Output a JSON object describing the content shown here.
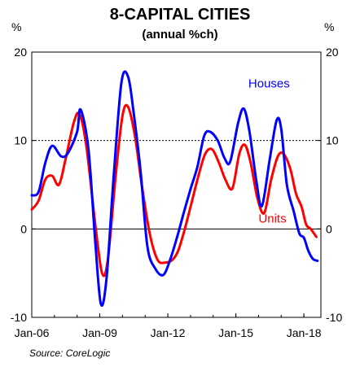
{
  "chart_data": {
    "type": "line",
    "title": "8-CAPITAL CITIES",
    "subtitle": "(annual %ch)",
    "y_unit_left": "%",
    "y_unit_right": "%",
    "source": "Source: CoreLogic",
    "ylim": [
      -10,
      20
    ],
    "xlim": [
      2006.0,
      2018.75
    ],
    "y_ticks": [
      "20",
      "10",
      "0",
      "-10"
    ],
    "x_ticks": [
      {
        "label": "Jan-06",
        "x": 2006.0
      },
      {
        "label": "Jan-09",
        "x": 2009.0
      },
      {
        "label": "Jan-12",
        "x": 2012.0
      },
      {
        "label": "Jan-15",
        "x": 2015.0
      },
      {
        "label": "Jan-18",
        "x": 2018.0
      }
    ],
    "reference_lines": [
      {
        "y": 10,
        "style": "dotted"
      },
      {
        "y": 0,
        "style": "solid"
      }
    ],
    "series": [
      {
        "name": "Houses",
        "color": "#0000ff",
        "x": [
          2006.0,
          2006.3,
          2006.6,
          2006.9,
          2007.3,
          2007.6,
          2008.0,
          2008.15,
          2008.5,
          2008.8,
          2009.05,
          2009.3,
          2009.6,
          2009.95,
          2010.25,
          2010.5,
          2010.8,
          2011.1,
          2011.45,
          2011.8,
          2012.1,
          2012.4,
          2012.7,
          2013.0,
          2013.3,
          2013.6,
          2013.85,
          2014.2,
          2014.5,
          2014.75,
          2015.1,
          2015.35,
          2015.6,
          2015.9,
          2016.15,
          2016.5,
          2016.8,
          2017.0,
          2017.25,
          2017.55,
          2017.8,
          2018.0,
          2018.2,
          2018.4,
          2018.6
        ],
        "y": [
          3.8,
          4.2,
          7.5,
          9.4,
          8.2,
          8.6,
          11.0,
          13.5,
          9.0,
          -1.5,
          -8.5,
          -5.5,
          5.5,
          16.5,
          17.2,
          13.0,
          6.5,
          -2.0,
          -4.5,
          -5.2,
          -3.5,
          -1.0,
          1.8,
          4.5,
          7.0,
          10.5,
          11.0,
          10.0,
          8.0,
          7.6,
          12.0,
          13.6,
          11.0,
          5.5,
          2.6,
          8.0,
          12.3,
          11.3,
          5.0,
          2.0,
          -0.5,
          -1.0,
          -2.5,
          -3.4,
          -3.6
        ]
      },
      {
        "name": "Units",
        "color": "#ff0000",
        "x": [
          2006.0,
          2006.3,
          2006.6,
          2006.9,
          2007.2,
          2007.5,
          2007.85,
          2008.1,
          2008.4,
          2008.8,
          2009.1,
          2009.35,
          2009.7,
          2010.0,
          2010.25,
          2010.55,
          2010.85,
          2011.2,
          2011.55,
          2011.9,
          2012.2,
          2012.45,
          2012.75,
          2013.05,
          2013.35,
          2013.65,
          2013.95,
          2014.25,
          2014.55,
          2014.85,
          2015.15,
          2015.4,
          2015.65,
          2015.95,
          2016.25,
          2016.55,
          2016.85,
          2017.1,
          2017.4,
          2017.65,
          2017.9,
          2018.1,
          2018.3,
          2018.55
        ],
        "y": [
          2.2,
          3.2,
          5.6,
          6.0,
          5.0,
          8.0,
          12.0,
          13.0,
          9.5,
          0.5,
          -5.0,
          -3.5,
          6.0,
          12.8,
          13.8,
          10.5,
          5.0,
          -0.5,
          -3.5,
          -3.8,
          -3.5,
          -2.5,
          0.0,
          3.0,
          6.0,
          8.5,
          9.0,
          7.5,
          5.5,
          4.6,
          8.5,
          9.5,
          7.5,
          3.5,
          1.8,
          5.5,
          8.2,
          8.5,
          6.8,
          4.0,
          2.5,
          0.5,
          0.0,
          -0.9
        ]
      }
    ]
  }
}
